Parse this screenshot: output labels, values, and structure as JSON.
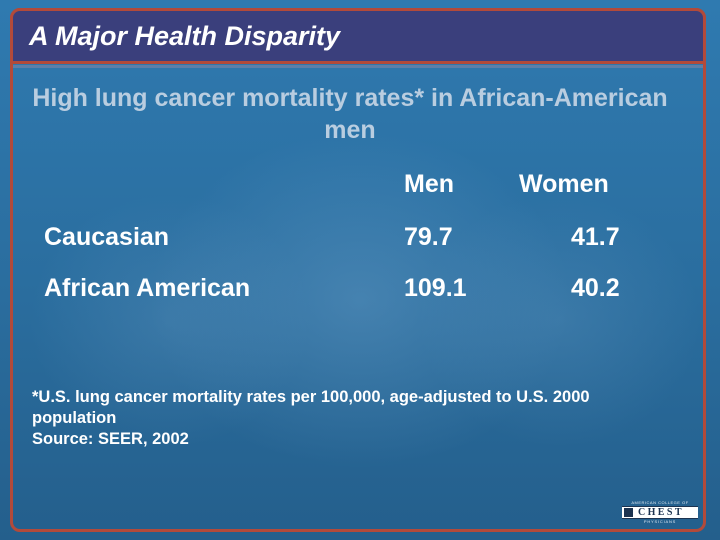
{
  "slide": {
    "title": "A Major Health Disparity",
    "subtitle": "High lung cancer mortality rates* in African-American men"
  },
  "table": {
    "columns": [
      "Men",
      "Women"
    ],
    "rows": [
      {
        "label": "Caucasian",
        "values": [
          "79.7",
          "41.7"
        ]
      },
      {
        "label": "African American",
        "values": [
          "109.1",
          "40.2"
        ]
      }
    ]
  },
  "footnote": {
    "line1": "*U.S. lung cancer mortality rates per 100,000, age-adjusted to U.S. 2000",
    "line2": "population",
    "source": "Source:  SEER, 2002"
  },
  "logo": {
    "top": "AMERICAN COLLEGE OF",
    "word": "CHEST",
    "bottom": "PHYSICIANS"
  },
  "colors": {
    "background": "#2a6a99",
    "title_bar": "#3a3f7c",
    "frame": "#b24a3a",
    "subtitle": "#b9cde0",
    "text": "#ffffff"
  }
}
